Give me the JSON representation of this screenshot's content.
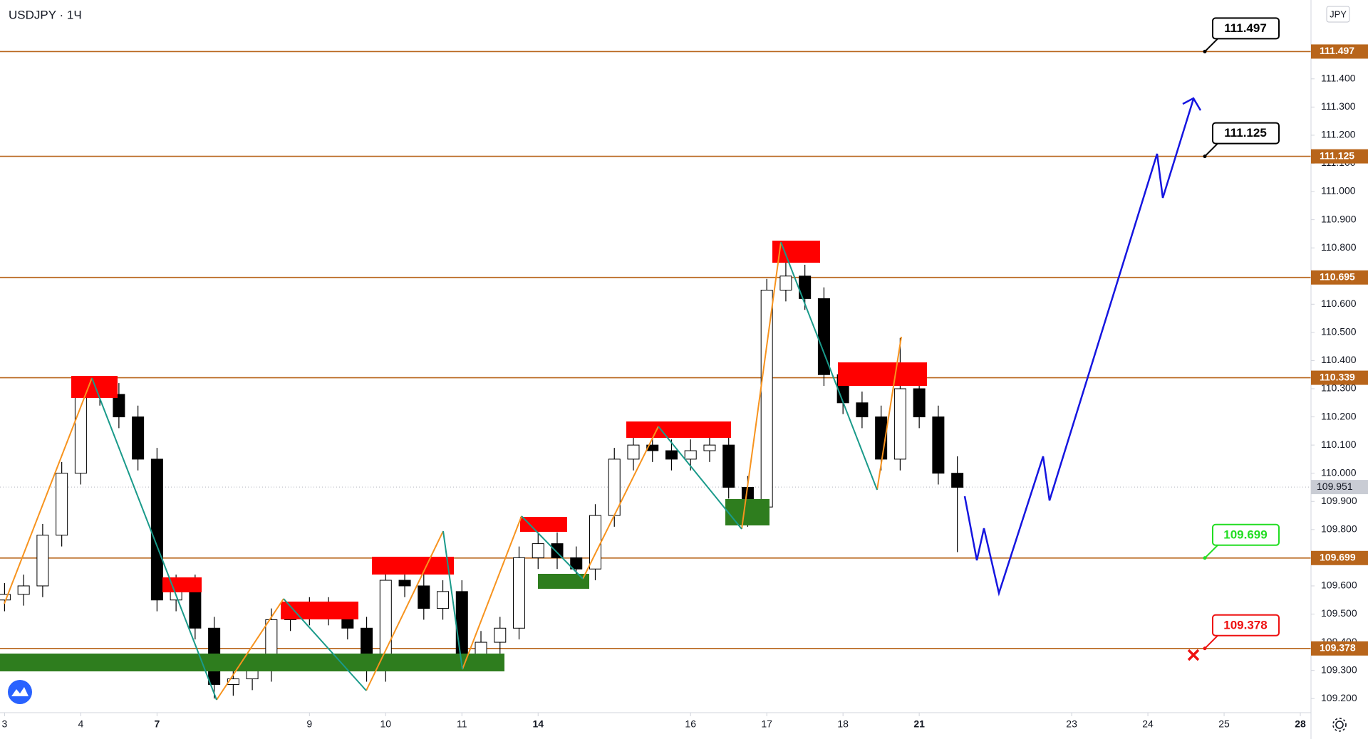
{
  "chart_data": {
    "type": "candlestick",
    "title": "USDJPY · 1Ч",
    "currency_label": "JPY",
    "xlim": [
      -0.06,
      17.14
    ],
    "ylim": [
      109.15,
      111.68
    ],
    "xticks": [
      {
        "value": 0,
        "label": "3"
      },
      {
        "value": 1,
        "label": "4"
      },
      {
        "value": 2,
        "label": "7"
      },
      {
        "value": 4,
        "label": "9"
      },
      {
        "value": 5,
        "label": "10"
      },
      {
        "value": 6,
        "label": "11"
      },
      {
        "value": 7,
        "label": "14"
      },
      {
        "value": 9,
        "label": "16"
      },
      {
        "value": 10,
        "label": "17"
      },
      {
        "value": 11,
        "label": "18"
      },
      {
        "value": 12,
        "label": "21"
      },
      {
        "value": 14,
        "label": "23"
      },
      {
        "value": 15,
        "label": "24"
      },
      {
        "value": 16,
        "label": "25"
      },
      {
        "value": 17,
        "label": "28"
      }
    ],
    "yticks": [
      {
        "value": 109.2,
        "label": "109.200"
      },
      {
        "value": 109.3,
        "label": "109.300"
      },
      {
        "value": 109.4,
        "label": "109.400"
      },
      {
        "value": 109.5,
        "label": "109.500"
      },
      {
        "value": 109.6,
        "label": "109.600"
      },
      {
        "value": 109.7,
        "label": "109.700"
      },
      {
        "value": 109.8,
        "label": "109.800"
      },
      {
        "value": 109.9,
        "label": "109.900"
      },
      {
        "value": 110.0,
        "label": "110.000"
      },
      {
        "value": 110.1,
        "label": "110.100"
      },
      {
        "value": 110.2,
        "label": "110.200"
      },
      {
        "value": 110.3,
        "label": "110.300"
      },
      {
        "value": 110.4,
        "label": "110.400"
      },
      {
        "value": 110.5,
        "label": "110.500"
      },
      {
        "value": 110.6,
        "label": "110.600"
      },
      {
        "value": 110.7,
        "label": "110.700"
      },
      {
        "value": 110.8,
        "label": "110.800"
      },
      {
        "value": 110.9,
        "label": "110.900"
      },
      {
        "value": 111.0,
        "label": "111.000"
      },
      {
        "value": 111.1,
        "label": "111.100"
      },
      {
        "value": 111.2,
        "label": "111.200"
      },
      {
        "value": 111.3,
        "label": "111.300"
      },
      {
        "value": 111.4,
        "label": "111.400"
      }
    ],
    "grid": false,
    "up_color": "#ffffff",
    "down_color": "#000000",
    "wick_color": "#000000",
    "candles": {
      "x": [
        0,
        0.25,
        0.5,
        0.75,
        1,
        1.25,
        1.5,
        1.75,
        2,
        2.25,
        2.5,
        2.75,
        3,
        3.25,
        3.5,
        3.75,
        4,
        4.25,
        4.5,
        4.75,
        5,
        5.25,
        5.5,
        5.75,
        6,
        6.25,
        6.5,
        6.75,
        7,
        7.25,
        7.5,
        7.75,
        8,
        8.25,
        8.5,
        8.75,
        9,
        9.25,
        9.5,
        9.75,
        10,
        10.25,
        10.5,
        10.75,
        11,
        11.25,
        11.5,
        11.75,
        12,
        12.25,
        12.5
      ],
      "open": [
        109.55,
        109.57,
        109.6,
        109.78,
        110.0,
        110.3,
        110.28,
        110.2,
        110.05,
        109.55,
        109.6,
        109.45,
        109.25,
        109.27,
        109.3,
        109.48,
        109.5,
        109.52,
        109.5,
        109.45,
        109.3,
        109.62,
        109.6,
        109.52,
        109.58,
        109.34,
        109.4,
        109.45,
        109.7,
        109.75,
        109.7,
        109.66,
        109.85,
        110.05,
        110.1,
        110.08,
        110.05,
        110.08,
        110.1,
        109.95,
        109.88,
        110.65,
        110.7,
        110.62,
        110.35,
        110.25,
        110.2,
        110.05,
        110.3,
        110.2,
        110.0
      ],
      "high": [
        109.61,
        109.64,
        109.82,
        110.04,
        110.34,
        110.34,
        110.32,
        110.24,
        110.09,
        109.64,
        109.64,
        109.49,
        109.31,
        109.34,
        109.52,
        109.54,
        109.56,
        109.56,
        109.54,
        109.49,
        109.66,
        109.66,
        109.64,
        109.62,
        109.62,
        109.44,
        109.49,
        109.74,
        109.79,
        109.79,
        109.74,
        109.89,
        110.09,
        110.14,
        110.14,
        110.12,
        110.12,
        110.14,
        110.14,
        109.99,
        110.69,
        110.82,
        110.74,
        110.66,
        110.39,
        110.29,
        110.24,
        110.48,
        110.34,
        110.24,
        110.06
      ],
      "low": [
        109.51,
        109.53,
        109.56,
        109.74,
        109.96,
        110.24,
        110.16,
        110.01,
        109.51,
        109.51,
        109.41,
        109.2,
        109.21,
        109.23,
        109.26,
        109.44,
        109.46,
        109.46,
        109.41,
        109.26,
        109.26,
        109.56,
        109.48,
        109.48,
        109.3,
        109.3,
        109.36,
        109.41,
        109.66,
        109.66,
        109.62,
        109.62,
        109.81,
        110.01,
        110.04,
        110.01,
        110.01,
        110.04,
        109.91,
        109.81,
        109.84,
        110.61,
        110.58,
        110.31,
        110.21,
        110.16,
        110.01,
        110.01,
        110.16,
        109.96,
        109.72
      ],
      "close": [
        109.57,
        109.6,
        109.78,
        110.0,
        110.3,
        110.28,
        110.2,
        110.05,
        109.55,
        109.6,
        109.45,
        109.25,
        109.27,
        109.3,
        109.48,
        109.5,
        109.52,
        109.5,
        109.45,
        109.3,
        109.62,
        109.6,
        109.52,
        109.58,
        109.34,
        109.4,
        109.45,
        109.7,
        109.75,
        109.7,
        109.66,
        109.85,
        110.05,
        110.1,
        110.08,
        110.05,
        110.08,
        110.1,
        109.95,
        109.88,
        110.65,
        110.7,
        110.62,
        110.35,
        110.25,
        110.2,
        110.05,
        110.3,
        110.2,
        110.0,
        109.95
      ]
    },
    "level_color": "#b8651b",
    "levels": [
      {
        "value": 111.497,
        "callout_color": "#000000"
      },
      {
        "value": 111.125,
        "callout_color": "#000000"
      },
      {
        "value": 110.695
      },
      {
        "value": 110.339
      },
      {
        "value": 109.699,
        "callout_color": "#22dd22"
      },
      {
        "value": 109.378,
        "callout_color": "#ee1111"
      }
    ],
    "last_price": 109.951
  }
}
